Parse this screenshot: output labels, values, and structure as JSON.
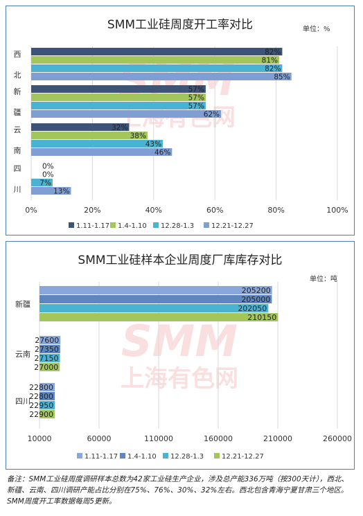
{
  "chart_data": [
    {
      "type": "bar",
      "orientation": "horizontal",
      "title": "SMM工业硅周度开工率对比",
      "unit_label": "单位：%",
      "categories": [
        "西北",
        "新疆",
        "云南",
        "四川"
      ],
      "series": [
        {
          "name": "1.11-1.17",
          "values": [
            82,
            57,
            32,
            0
          ],
          "color": "#3d5478"
        },
        {
          "name": "1.4-1.10",
          "values": [
            81,
            57,
            38,
            0
          ],
          "color": "#a3c65a"
        },
        {
          "name": "12.28-1.3",
          "values": [
            82,
            57,
            43,
            7
          ],
          "color": "#4ab3d3"
        },
        {
          "name": "12.21-12.27",
          "values": [
            85,
            62,
            46,
            13
          ],
          "color": "#7f9fd4"
        }
      ],
      "data_labels": [
        [
          "82%",
          "57%",
          "32%",
          "0%"
        ],
        [
          "81%",
          "57%",
          "38%",
          "0%"
        ],
        [
          "82%",
          "57%",
          "43%",
          "7%"
        ],
        [
          "85%",
          "62%",
          "46%",
          "13%"
        ]
      ],
      "xlim": [
        0,
        100
      ],
      "x_ticks": [
        "0%",
        "20%",
        "40%",
        "60%",
        "80%",
        "100%"
      ],
      "grid": true,
      "legend_position": "bottom"
    },
    {
      "type": "bar",
      "orientation": "horizontal",
      "title": "SMM工业硅样本企业周度厂库库存对比",
      "unit_label": "单位：吨",
      "categories": [
        "新疆",
        "云南",
        "四川"
      ],
      "series": [
        {
          "name": "1.11-1.17",
          "values": [
            205200,
            27600,
            22800
          ],
          "color": "#8aa7da"
        },
        {
          "name": "1.4-1.10",
          "values": [
            205000,
            27350,
            22800
          ],
          "color": "#5f86c4"
        },
        {
          "name": "12.28-1.3",
          "values": [
            202050,
            27150,
            22950
          ],
          "color": "#4ab3d3"
        },
        {
          "name": "12.21-12.27",
          "values": [
            210150,
            27000,
            22900
          ],
          "color": "#a3c65a"
        }
      ],
      "xlim": [
        10000,
        260000
      ],
      "x_ticks": [
        "10000",
        "60000",
        "110000",
        "160000",
        "210000",
        "260000"
      ],
      "grid": true,
      "legend_position": "bottom"
    }
  ],
  "watermark": {
    "logo": "SMM",
    "text": "上海有色网"
  },
  "footnote": {
    "line1": "备注：SMM工业硅周度调研样本总数为42家工业硅生产企业，涉及总产能336万吨（按300天计），西北、",
    "line2": "新疆、云南、四川调研产能占比分别在75%、76%、30%、32%左右。西北包含青海宁夏甘肃三个地区。",
    "line3": "SMM周度开工率数据每周5更新。"
  }
}
